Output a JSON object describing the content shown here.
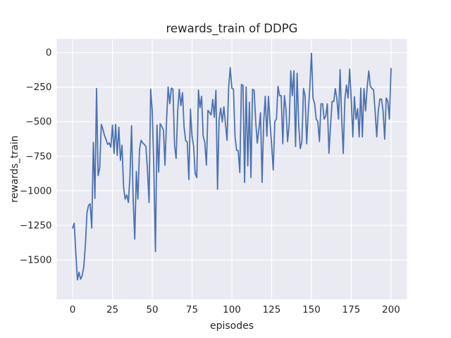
{
  "figure": {
    "title": "rewards_train of DDPG",
    "xlabel": "episodes",
    "ylabel": "rewards_train"
  },
  "chart_data": {
    "type": "line",
    "title": "rewards_train of DDPG",
    "xlabel": "episodes",
    "ylabel": "rewards_train",
    "series_name": "rewards_train",
    "x_start": 0,
    "x_step": 1,
    "n_points": 201,
    "xlim": [
      -10,
      210
    ],
    "ylim": [
      -1785,
      98
    ],
    "x_ticks": [
      0,
      25,
      50,
      75,
      100,
      125,
      150,
      175,
      200
    ],
    "y_ticks": [
      0,
      -250,
      -500,
      -750,
      -1000,
      -1250,
      -1500
    ],
    "grid": true,
    "legend": "none",
    "style": "seaborn-darkgrid",
    "colors": {
      "line": "#4c72b0",
      "axes_bg": "#eaeaf2",
      "grid": "#ffffff",
      "figure_bg": "#ffffff",
      "text": "#262626"
    },
    "values": [
      -1270,
      -1235,
      -1450,
      -1645,
      -1590,
      -1640,
      -1615,
      -1550,
      -1390,
      -1160,
      -1105,
      -1095,
      -1270,
      -650,
      -1055,
      -260,
      -890,
      -835,
      -520,
      -555,
      -600,
      -630,
      -665,
      -655,
      -685,
      -525,
      -730,
      -520,
      -745,
      -540,
      -780,
      -670,
      -975,
      -1060,
      -1030,
      -1085,
      -895,
      -530,
      -1050,
      -1350,
      -860,
      -1060,
      -700,
      -635,
      -655,
      -665,
      -680,
      -850,
      -1085,
      -265,
      -420,
      -845,
      -1440,
      -525,
      -865,
      -515,
      -535,
      -560,
      -815,
      -486,
      -250,
      -370,
      -257,
      -266,
      -673,
      -767,
      -418,
      -266,
      -385,
      -291,
      -537,
      -639,
      -645,
      -919,
      -410,
      -605,
      -682,
      -877,
      -905,
      -272,
      -400,
      -317,
      -605,
      -648,
      -815,
      -418,
      -435,
      -452,
      -340,
      -469,
      -274,
      -990,
      -486,
      -402,
      -503,
      -393,
      -520,
      -635,
      -249,
      -110,
      -258,
      -266,
      -605,
      -707,
      -710,
      -868,
      -232,
      -236,
      -940,
      -249,
      -820,
      -360,
      -905,
      -266,
      -274,
      -503,
      -656,
      -554,
      -436,
      -940,
      -503,
      -317,
      -605,
      -317,
      -503,
      -670,
      -850,
      -500,
      -480,
      -245,
      -312,
      -312,
      -660,
      -312,
      -406,
      -645,
      -525,
      -133,
      -312,
      -133,
      -680,
      -150,
      -525,
      -695,
      -645,
      -260,
      -312,
      -660,
      -430,
      -250,
      -5,
      -330,
      -371,
      -482,
      -499,
      -644,
      -371,
      -371,
      -482,
      -457,
      -371,
      -729,
      -525,
      -354,
      -354,
      -261,
      -337,
      -482,
      -124,
      -482,
      -730,
      -337,
      -235,
      -330,
      -120,
      -337,
      -610,
      -320,
      -482,
      -406,
      -610,
      -258,
      -610,
      -261,
      -423,
      -252,
      -133,
      -244,
      -261,
      -269,
      -423,
      -610,
      -423,
      -337,
      -337,
      -423,
      -627,
      -329,
      -354,
      -482,
      -116
    ]
  }
}
